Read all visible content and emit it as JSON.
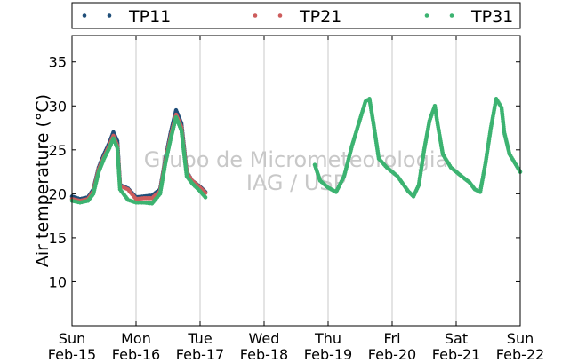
{
  "chart_data": {
    "type": "scatter",
    "ylabel": "Air temperature (°C)",
    "ylim": [
      5,
      38
    ],
    "yticks": [
      10,
      15,
      20,
      25,
      30,
      35
    ],
    "xlim": [
      "2015-02-15",
      "2015-02-22"
    ],
    "xticks": [
      {
        "day": "Sun",
        "date": "Feb-15"
      },
      {
        "day": "Mon",
        "date": "Feb-16"
      },
      {
        "day": "Tue",
        "date": "Feb-17"
      },
      {
        "day": "Wed",
        "date": "Feb-18"
      },
      {
        "day": "Thu",
        "date": "Feb-19"
      },
      {
        "day": "Fri",
        "date": "Feb-20"
      },
      {
        "day": "Sat",
        "date": "Feb-21"
      },
      {
        "day": "Sun",
        "date": "Feb-22"
      }
    ],
    "grid": "vertical",
    "legend_position": "top",
    "watermark": [
      "Grupo de Micrometeorologia",
      "IAG / USP"
    ],
    "series": [
      {
        "name": "TP11",
        "color": "#1f4e79",
        "points": [
          [
            "2015-02-15 00:00",
            19.7
          ],
          [
            "2015-02-15 03:00",
            19.4
          ],
          [
            "2015-02-15 06:00",
            19.6
          ],
          [
            "2015-02-15 08:00",
            20.5
          ],
          [
            "2015-02-15 10:00",
            23.0
          ],
          [
            "2015-02-15 12:00",
            24.5
          ],
          [
            "2015-02-15 14:00",
            25.8
          ],
          [
            "2015-02-15 15:30",
            27.0
          ],
          [
            "2015-02-15 17:00",
            26.0
          ],
          [
            "2015-02-15 18:00",
            21.0
          ],
          [
            "2015-02-15 21:00",
            20.6
          ],
          [
            "2015-02-16 00:00",
            19.6
          ],
          [
            "2015-02-16 03:00",
            19.7
          ],
          [
            "2015-02-16 06:00",
            19.8
          ],
          [
            "2015-02-16 09:00",
            20.5
          ],
          [
            "2015-02-16 11:00",
            24.0
          ],
          [
            "2015-02-16 13:00",
            27.0
          ],
          [
            "2015-02-16 15:00",
            29.5
          ],
          [
            "2015-02-16 17:00",
            28.0
          ],
          [
            "2015-02-16 19:00",
            22.5
          ],
          [
            "2015-02-16 21:00",
            21.5
          ],
          [
            "2015-02-17 00:00",
            20.8
          ],
          [
            "2015-02-17 02:00",
            20.2
          ]
        ]
      },
      {
        "name": "TP21",
        "color": "#cd5c5c",
        "points": [
          [
            "2015-02-15 00:00",
            19.4
          ],
          [
            "2015-02-15 03:00",
            19.2
          ],
          [
            "2015-02-15 06:00",
            19.4
          ],
          [
            "2015-02-15 08:00",
            20.3
          ],
          [
            "2015-02-15 10:00",
            22.8
          ],
          [
            "2015-02-15 12:00",
            24.2
          ],
          [
            "2015-02-15 14:00",
            25.5
          ],
          [
            "2015-02-15 15:30",
            26.6
          ],
          [
            "2015-02-15 17:00",
            25.5
          ],
          [
            "2015-02-15 18:00",
            20.9
          ],
          [
            "2015-02-15 21:00",
            20.5
          ],
          [
            "2015-02-16 00:00",
            19.4
          ],
          [
            "2015-02-16 03:00",
            19.5
          ],
          [
            "2015-02-16 06:00",
            19.5
          ],
          [
            "2015-02-16 09:00",
            20.3
          ],
          [
            "2015-02-16 11:00",
            23.8
          ],
          [
            "2015-02-16 13:00",
            26.6
          ],
          [
            "2015-02-16 15:00",
            29.0
          ],
          [
            "2015-02-16 17:00",
            27.6
          ],
          [
            "2015-02-16 19:00",
            22.4
          ],
          [
            "2015-02-16 21:00",
            21.5
          ],
          [
            "2015-02-17 00:00",
            20.7
          ],
          [
            "2015-02-17 02:00",
            20.1
          ]
        ]
      },
      {
        "name": "TP31",
        "color": "#3cb371",
        "points": [
          [
            "2015-02-15 00:00",
            19.2
          ],
          [
            "2015-02-15 03:00",
            19.0
          ],
          [
            "2015-02-15 06:00",
            19.2
          ],
          [
            "2015-02-15 08:00",
            20.0
          ],
          [
            "2015-02-15 10:00",
            22.5
          ],
          [
            "2015-02-15 12:00",
            24.0
          ],
          [
            "2015-02-15 14:00",
            25.2
          ],
          [
            "2015-02-15 15:30",
            26.3
          ],
          [
            "2015-02-15 17:00",
            25.2
          ],
          [
            "2015-02-15 18:00",
            20.5
          ],
          [
            "2015-02-15 21:00",
            19.3
          ],
          [
            "2015-02-16 00:00",
            19.0
          ],
          [
            "2015-02-16 03:00",
            19.0
          ],
          [
            "2015-02-16 06:00",
            18.9
          ],
          [
            "2015-02-16 09:00",
            20.0
          ],
          [
            "2015-02-16 11:00",
            23.5
          ],
          [
            "2015-02-16 13:00",
            26.3
          ],
          [
            "2015-02-16 15:00",
            28.7
          ],
          [
            "2015-02-16 17:00",
            27.2
          ],
          [
            "2015-02-16 19:00",
            22.0
          ],
          [
            "2015-02-16 21:00",
            21.2
          ],
          [
            "2015-02-17 00:00",
            20.3
          ],
          [
            "2015-02-17 02:00",
            19.6
          ],
          [
            "2015-02-18 19:00",
            23.3
          ],
          [
            "2015-02-18 21:00",
            21.5
          ],
          [
            "2015-02-19 00:00",
            20.7
          ],
          [
            "2015-02-19 03:00",
            20.2
          ],
          [
            "2015-02-19 06:00",
            22.0
          ],
          [
            "2015-02-19 09:00",
            25.5
          ],
          [
            "2015-02-19 12:00",
            28.5
          ],
          [
            "2015-02-19 14:00",
            30.5
          ],
          [
            "2015-02-19 15:30",
            30.8
          ],
          [
            "2015-02-19 17:00",
            28.0
          ],
          [
            "2015-02-19 19:00",
            24.0
          ],
          [
            "2015-02-19 22:00",
            23.0
          ],
          [
            "2015-02-20 02:00",
            22.0
          ],
          [
            "2015-02-20 06:00",
            20.3
          ],
          [
            "2015-02-20 08:00",
            19.7
          ],
          [
            "2015-02-20 10:00",
            21.0
          ],
          [
            "2015-02-20 12:00",
            25.0
          ],
          [
            "2015-02-20 14:00",
            28.3
          ],
          [
            "2015-02-20 16:00",
            30.0
          ],
          [
            "2015-02-20 17:00",
            28.0
          ],
          [
            "2015-02-20 19:00",
            24.5
          ],
          [
            "2015-02-20 22:00",
            23.0
          ],
          [
            "2015-02-21 02:00",
            22.0
          ],
          [
            "2015-02-21 05:00",
            21.3
          ],
          [
            "2015-02-21 07:00",
            20.5
          ],
          [
            "2015-02-21 09:00",
            20.2
          ],
          [
            "2015-02-21 11:00",
            23.5
          ],
          [
            "2015-02-21 13:00",
            27.5
          ],
          [
            "2015-02-21 15:00",
            30.8
          ],
          [
            "2015-02-21 17:00",
            29.8
          ],
          [
            "2015-02-21 18:00",
            27.0
          ],
          [
            "2015-02-21 20:00",
            24.5
          ],
          [
            "2015-02-21 22:00",
            23.5
          ],
          [
            "2015-02-22 00:00",
            22.5
          ]
        ]
      }
    ]
  }
}
